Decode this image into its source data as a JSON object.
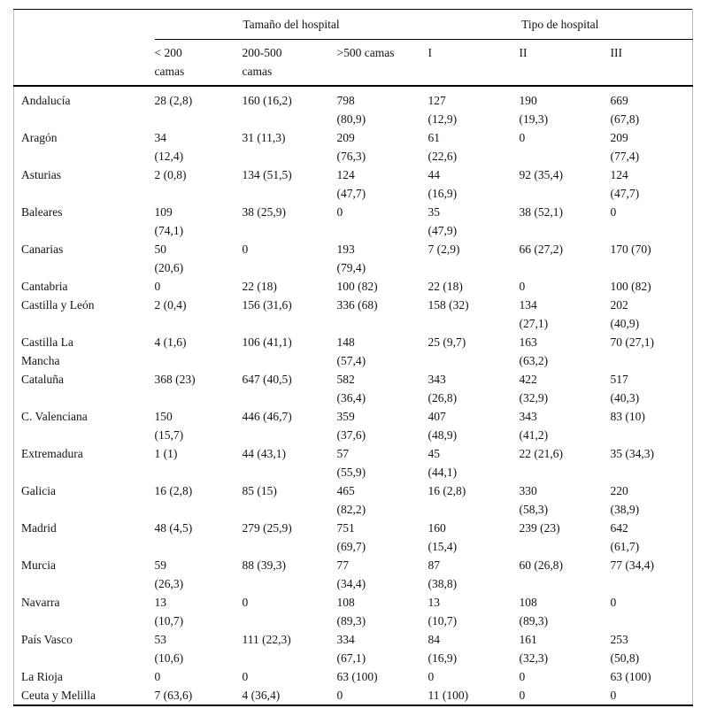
{
  "table": {
    "col_groups": [
      {
        "label": "Tamaño del hospital",
        "span": 3
      },
      {
        "label": "Tipo de hospital",
        "span": 3
      }
    ],
    "columns": [
      "< 200\ncamas",
      "200-500\ncamas",
      ">500 camas",
      "I",
      "II",
      "III"
    ],
    "rows": [
      {
        "region": "Andalucía",
        "cells": [
          "28 (2,8)",
          "160 (16,2)",
          "798\n(80,9)",
          "127\n(12,9)",
          "190\n(19,3)",
          "669\n(67,8)"
        ]
      },
      {
        "region": "Aragón",
        "cells": [
          "34\n(12,4)",
          "31 (11,3)",
          "209\n(76,3)",
          "61\n(22,6)",
          "0",
          "209\n(77,4)"
        ]
      },
      {
        "region": "Asturias",
        "cells": [
          "2 (0,8)",
          "134 (51,5)",
          "124\n(47,7)",
          "44\n(16,9)",
          "92 (35,4)",
          "124\n(47,7)"
        ]
      },
      {
        "region": "Baleares",
        "cells": [
          "109\n(74,1)",
          "38 (25,9)",
          "0",
          "35\n(47,9)",
          "38 (52,1)",
          "0"
        ]
      },
      {
        "region": "Canarias",
        "cells": [
          "50\n(20,6)",
          "0",
          "193\n(79,4)",
          "7 (2,9)",
          "66 (27,2)",
          "170 (70)"
        ]
      },
      {
        "region": "Cantabria",
        "cells": [
          "0",
          "22 (18)",
          "100 (82)",
          "22 (18)",
          "0",
          "100 (82)"
        ]
      },
      {
        "region": "Castilla y León",
        "cells": [
          "2 (0,4)",
          "156 (31,6)",
          "336 (68)",
          "158 (32)",
          "134\n(27,1)",
          "202\n(40,9)"
        ]
      },
      {
        "region": "Castilla La\nMancha",
        "cells": [
          "4 (1,6)",
          "106 (41,1)",
          "148\n(57,4)",
          "25 (9,7)",
          "163\n(63,2)",
          "70 (27,1)"
        ]
      },
      {
        "region": "Cataluña",
        "cells": [
          "368 (23)",
          "647 (40,5)",
          "582\n(36,4)",
          "343\n(26,8)",
          "422\n(32,9)",
          "517\n(40,3)"
        ]
      },
      {
        "region": "C. Valenciana",
        "cells": [
          "150\n(15,7)",
          "446 (46,7)",
          "359\n(37,6)",
          "407\n(48,9)",
          "343\n(41,2)",
          "83 (10)"
        ]
      },
      {
        "region": "Extremadura",
        "cells": [
          "1 (1)",
          "44 (43,1)",
          "57\n(55,9)",
          "45\n(44,1)",
          "22 (21,6)",
          "35 (34,3)"
        ]
      },
      {
        "region": "Galicia",
        "cells": [
          "16 (2,8)",
          "85 (15)",
          "465\n(82,2)",
          "16 (2,8)",
          "330\n(58,3)",
          "220\n(38,9)"
        ]
      },
      {
        "region": "Madrid",
        "cells": [
          "48 (4,5)",
          "279 (25,9)",
          "751\n(69,7)",
          "160\n(15,4)",
          "239 (23)",
          "642\n(61,7)"
        ]
      },
      {
        "region": "Murcia",
        "cells": [
          "59\n(26,3)",
          "88 (39,3)",
          "77\n(34,4)",
          "87\n(38,8)",
          "60 (26,8)",
          "77 (34,4)"
        ]
      },
      {
        "region": "Navarra",
        "cells": [
          "13\n(10,7)",
          "0",
          "108\n(89,3)",
          "13\n(10,7)",
          "108\n(89,3)",
          "0"
        ]
      },
      {
        "region": "País Vasco",
        "cells": [
          "53\n(10,6)",
          "111 (22,3)",
          "334\n(67,1)",
          "84\n(16,9)",
          "161\n(32,3)",
          "253\n(50,8)"
        ]
      },
      {
        "region": "La Rioja",
        "cells": [
          "0",
          "0",
          "63 (100)",
          "0",
          "0",
          "63 (100)"
        ]
      },
      {
        "region": "Ceuta y Melilla",
        "cells": [
          "7 (63,6)",
          "4 (36,4)",
          "0",
          "11 (100)",
          "0",
          "0"
        ]
      }
    ],
    "colors": {
      "rule": "#000000",
      "frame": "#bdbdbd",
      "text": "#141414",
      "background": "#ffffff"
    }
  }
}
